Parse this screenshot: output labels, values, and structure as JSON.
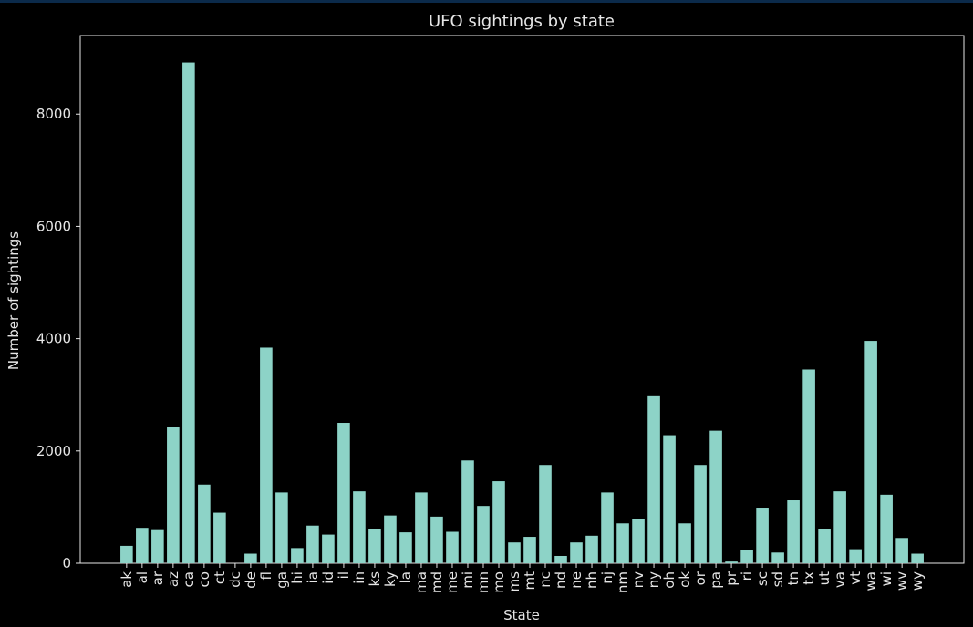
{
  "chart_data": {
    "type": "bar",
    "title": "UFO sightings by state",
    "xlabel": "State",
    "ylabel": "Number of sightings",
    "ylim": [
      0,
      9400
    ],
    "yticks": [
      0,
      2000,
      4000,
      6000,
      8000
    ],
    "grid": false,
    "legend": "none",
    "bar_color": "#8dd3c7",
    "background_color": "#000000",
    "categories": [
      "ak",
      "al",
      "ar",
      "az",
      "ca",
      "co",
      "ct",
      "dc",
      "de",
      "fl",
      "ga",
      "hi",
      "ia",
      "id",
      "il",
      "in",
      "ks",
      "ky",
      "la",
      "ma",
      "md",
      "me",
      "mi",
      "mn",
      "mo",
      "ms",
      "mt",
      "nc",
      "nd",
      "ne",
      "nh",
      "nj",
      "nm",
      "nv",
      "ny",
      "oh",
      "ok",
      "or",
      "pa",
      "pr",
      "ri",
      "sc",
      "sd",
      "tn",
      "tx",
      "ut",
      "va",
      "vt",
      "wa",
      "wi",
      "wv",
      "wy"
    ],
    "values": [
      310,
      630,
      590,
      2420,
      8920,
      1400,
      900,
      0,
      170,
      3840,
      1260,
      270,
      670,
      510,
      2500,
      1280,
      610,
      850,
      550,
      1260,
      830,
      560,
      1830,
      1020,
      1460,
      370,
      470,
      1750,
      130,
      370,
      490,
      1260,
      710,
      790,
      2990,
      2280,
      710,
      1750,
      2360,
      30,
      230,
      990,
      190,
      1120,
      3450,
      610,
      1280,
      250,
      3960,
      1220,
      450,
      170
    ]
  }
}
